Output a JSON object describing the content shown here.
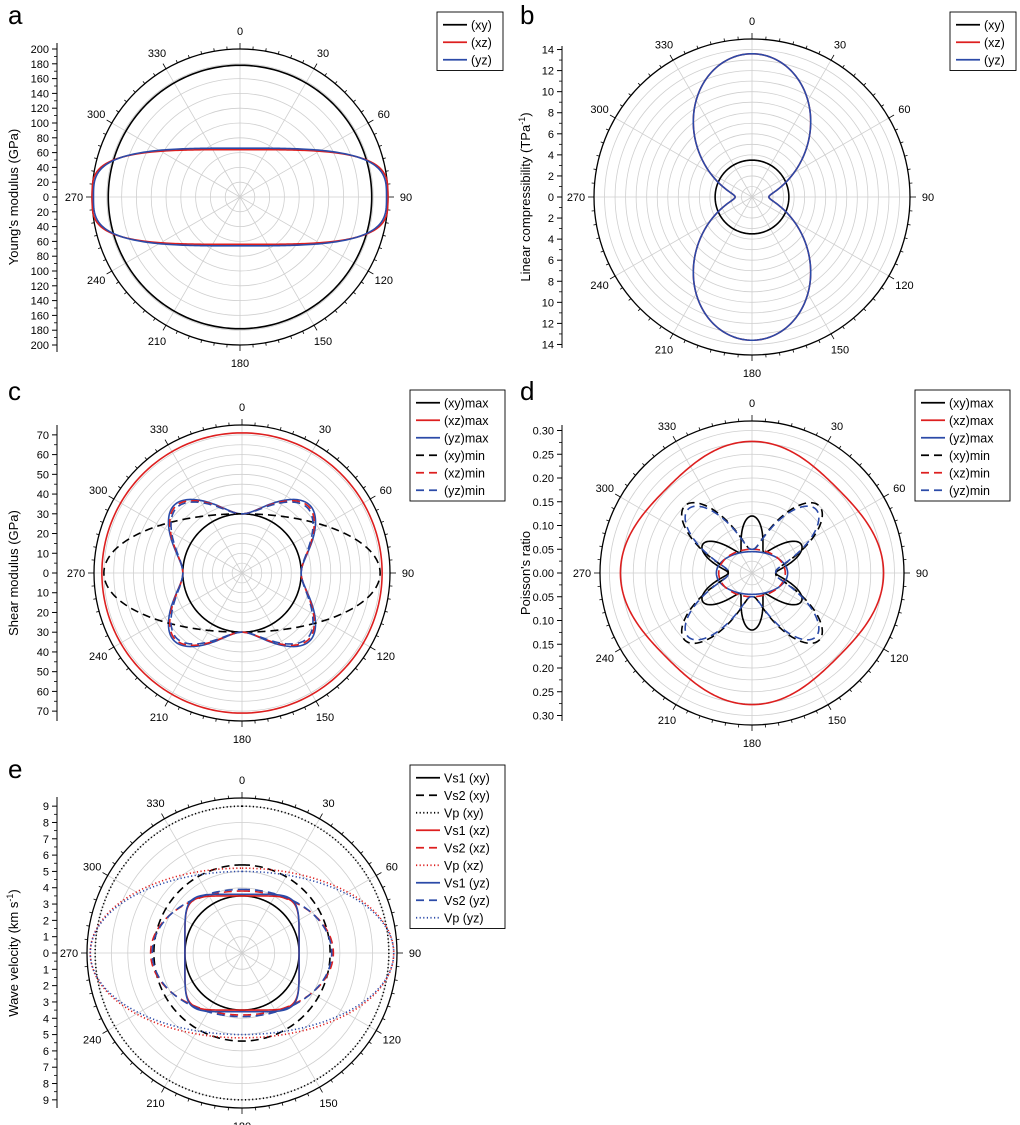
{
  "colors": {
    "xy": "#000000",
    "xz": "#dd1f1f",
    "yz": "#2b4aa8",
    "grid": "#cfcfcf",
    "axis": "#000000"
  },
  "chart_data": [
    {
      "id": "a",
      "panel_label": "a",
      "type": "polar-line",
      "ylabel": "Young's modulus (GPa)",
      "ylabel_html": "Young's modulus (GPa)",
      "rmax": 200,
      "rstep": 20,
      "radial_ticks": [
        "200",
        "180",
        "160",
        "140",
        "120",
        "100",
        "80",
        "60",
        "40",
        "20",
        "0",
        "20",
        "40",
        "60",
        "80",
        "100",
        "120",
        "140",
        "160",
        "180",
        "200"
      ],
      "angle_ticks": [
        "0",
        "30",
        "60",
        "90",
        "120",
        "150",
        "180",
        "210",
        "240",
        "270",
        "300",
        "330"
      ],
      "series": [
        {
          "name": "(xy)",
          "color_key": "xy",
          "dash": "solid",
          "shape": "circle",
          "params": {
            "r": 178
          }
        },
        {
          "name": "(xz)",
          "color_key": "xz",
          "dash": "solid",
          "shape": "lens",
          "params": {
            "a": 64,
            "b": 200,
            "p": 3.5
          }
        },
        {
          "name": "(yz)",
          "color_key": "yz",
          "dash": "solid",
          "shape": "lens",
          "params": {
            "a": 66,
            "b": 198,
            "p": 3.3
          }
        }
      ]
    },
    {
      "id": "b",
      "panel_label": "b",
      "type": "polar-line",
      "ylabel": "Linear compressibility (TPa-1)",
      "ylabel_main": "Linear compressibility (TPa",
      "ylabel_sup": "-1",
      "ylabel_end": ")",
      "rmax": 15,
      "rstep": 1,
      "radial_ticks": [
        "14",
        "12",
        "10",
        "8",
        "6",
        "4",
        "2",
        "0",
        "2",
        "4",
        "6",
        "8",
        "10",
        "12",
        "14"
      ],
      "angle_ticks": [
        "0",
        "30",
        "60",
        "90",
        "120",
        "150",
        "180",
        "210",
        "240",
        "270",
        "300",
        "330"
      ],
      "series": [
        {
          "name": "(xy)",
          "color_key": "xy",
          "dash": "solid",
          "shape": "circle",
          "params": {
            "r": 3.5
          }
        },
        {
          "name": "(xz)",
          "color_key": "xz",
          "dash": "solid",
          "shape": "peanut",
          "params": {
            "r0": 1.6,
            "r1": 12.0
          }
        },
        {
          "name": "(yz)",
          "color_key": "yz",
          "dash": "solid",
          "shape": "peanut",
          "params": {
            "r0": 1.6,
            "r1": 12.0
          }
        }
      ]
    },
    {
      "id": "c",
      "panel_label": "c",
      "type": "polar-line",
      "ylabel": "Shear modulus (GPa)",
      "rmax": 75,
      "rstep": 5,
      "radial_ticks": [
        "70",
        "60",
        "50",
        "40",
        "30",
        "20",
        "10",
        "0",
        "10",
        "20",
        "30",
        "40",
        "50",
        "60",
        "70"
      ],
      "angle_ticks": [
        "0",
        "30",
        "60",
        "90",
        "120",
        "150",
        "180",
        "210",
        "240",
        "270",
        "300",
        "330"
      ],
      "series": [
        {
          "name": "(xy)max",
          "color_key": "xy",
          "dash": "solid",
          "shape": "circle",
          "params": {
            "r": 30
          }
        },
        {
          "name": "(xz)max",
          "color_key": "xz",
          "dash": "solid",
          "shape": "circle",
          "params": {
            "r": 71
          }
        },
        {
          "name": "(yz)max",
          "color_key": "yz",
          "dash": "solid",
          "shape": "bulge",
          "params": {
            "r0": 30,
            "a": 12,
            "k": 4,
            "phase": 0
          }
        },
        {
          "name": "(xy)min",
          "color_key": "xy",
          "dash": "dash",
          "shape": "ellipse",
          "params": {
            "a": 30,
            "b": 70
          }
        },
        {
          "name": "(xz)min",
          "color_key": "xz",
          "dash": "dash",
          "shape": "bulge",
          "params": {
            "r0": 30,
            "a": 11,
            "k": 4,
            "phase": 0
          }
        },
        {
          "name": "(yz)min",
          "color_key": "yz",
          "dash": "dash",
          "shape": "bulge",
          "params": {
            "r0": 30,
            "a": 10,
            "k": 4,
            "phase": 0
          }
        }
      ]
    },
    {
      "id": "d",
      "panel_label": "d",
      "type": "polar-line",
      "ylabel": "Poisson's ratio",
      "rmax": 0.32,
      "rstep": 0.025,
      "radial_ticks": [
        "0.30",
        "0.25",
        "0.20",
        "0.15",
        "0.10",
        "0.05",
        "0.00",
        "0.05",
        "0.10",
        "0.15",
        "0.20",
        "0.25",
        "0.30"
      ],
      "radial_values": [
        0.3,
        0.25,
        0.2,
        0.15,
        0.1,
        0.05,
        0.0,
        0.05,
        0.1,
        0.15,
        0.2,
        0.25,
        0.3
      ],
      "angle_ticks": [
        "0",
        "30",
        "60",
        "90",
        "120",
        "150",
        "180",
        "210",
        "240",
        "270",
        "300",
        "330"
      ],
      "series": [
        {
          "name": "(xy)max",
          "color_key": "xy",
          "dash": "solid",
          "shape": "wave",
          "params": {
            "r0": 0.085,
            "a": 0.035,
            "k": 6,
            "phase": 0
          }
        },
        {
          "name": "(xz)max",
          "color_key": "xz",
          "dash": "solid",
          "shape": "wave",
          "params": {
            "r0": 0.265,
            "a": 0.012,
            "k": 4,
            "phase": 0
          }
        },
        {
          "name": "(yz)max",
          "color_key": "yz",
          "dash": "solid",
          "shape": "lens",
          "params": {
            "a": 0.045,
            "b": 0.075,
            "p": 2.0
          }
        },
        {
          "name": "(xy)min",
          "color_key": "xy",
          "dash": "dash",
          "shape": "star",
          "params": {
            "r0": 0.05,
            "r1": 0.2,
            "k": 4,
            "phase": 45
          }
        },
        {
          "name": "(xz)min",
          "color_key": "xz",
          "dash": "dash",
          "shape": "lens",
          "params": {
            "a": 0.05,
            "b": 0.07,
            "p": 2.0
          }
        },
        {
          "name": "(yz)min",
          "color_key": "yz",
          "dash": "dash",
          "shape": "star",
          "params": {
            "r0": 0.05,
            "r1": 0.19,
            "k": 4,
            "phase": 45
          }
        }
      ]
    },
    {
      "id": "e",
      "panel_label": "e",
      "type": "polar-line",
      "ylabel": "Wave velocity (km s-1)",
      "ylabel_main": "Wave velocity (km s",
      "ylabel_sup": "-1",
      "ylabel_end": ")",
      "rmax": 9.5,
      "rstep": 1,
      "radial_ticks": [
        "9",
        "8",
        "7",
        "6",
        "5",
        "4",
        "3",
        "2",
        "1",
        "0",
        "1",
        "2",
        "3",
        "4",
        "5",
        "6",
        "7",
        "8",
        "9"
      ],
      "angle_ticks": [
        "0",
        "30",
        "60",
        "90",
        "120",
        "150",
        "180",
        "210",
        "240",
        "270",
        "300",
        "330"
      ],
      "series": [
        {
          "name": "Vs1 (xy)",
          "color_key": "xy",
          "dash": "solid",
          "shape": "circle",
          "params": {
            "r": 3.5
          }
        },
        {
          "name": "Vs2 (xy)",
          "color_key": "xy",
          "dash": "dash",
          "shape": "circle",
          "params": {
            "r": 5.4
          }
        },
        {
          "name": "Vp (xy)",
          "color_key": "xy",
          "dash": "dot",
          "shape": "circle",
          "params": {
            "r": 9.0
          }
        },
        {
          "name": "Vs1 (xz)",
          "color_key": "xz",
          "dash": "solid",
          "shape": "squircle",
          "params": {
            "a": 3.5,
            "b": 3.5
          }
        },
        {
          "name": "Vs2 (xz)",
          "color_key": "xz",
          "dash": "dash",
          "shape": "ellipse",
          "params": {
            "a": 3.8,
            "b": 5.6
          }
        },
        {
          "name": "Vp (xz)",
          "color_key": "xz",
          "dash": "dot",
          "shape": "ellipse",
          "params": {
            "a": 5.2,
            "b": 9.3
          }
        },
        {
          "name": "Vs1 (yz)",
          "color_key": "yz",
          "dash": "solid",
          "shape": "squircle",
          "params": {
            "a": 3.6,
            "b": 3.5
          }
        },
        {
          "name": "Vs2 (yz)",
          "color_key": "yz",
          "dash": "dash",
          "shape": "ellipse",
          "params": {
            "a": 3.9,
            "b": 5.5
          }
        },
        {
          "name": "Vp (yz)",
          "color_key": "yz",
          "dash": "dot",
          "shape": "ellipse",
          "params": {
            "a": 5.0,
            "b": 9.3
          }
        }
      ]
    }
  ]
}
